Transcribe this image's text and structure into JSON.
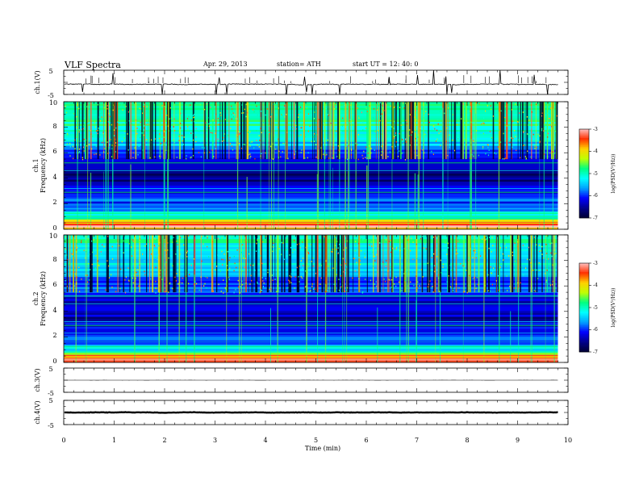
{
  "header": {
    "title": "VLF  Spectra",
    "date": "Apr. 29, 2013",
    "station": "station= ATH",
    "start": "start  UT  =    12: 40: 0"
  },
  "chart_data": [
    {
      "type": "line",
      "name_label": "ch.1(V)",
      "ylim": [
        -5,
        5
      ],
      "yticks": [
        "5",
        "-5"
      ],
      "xlim": [
        0,
        10
      ],
      "level": -0.8,
      "noise": 0.25,
      "spikes": 0.6
    },
    {
      "type": "heatmap",
      "channel_label": "ch.1",
      "ylabel": "Frequency  (kHz)",
      "ylim": [
        0,
        10
      ],
      "yticks": [
        "0",
        "2",
        "4",
        "6",
        "8",
        "10"
      ],
      "xlim": [
        0,
        10
      ],
      "data_end_min": 9.8,
      "band_profile": {
        "freq_khz": [
          0,
          0.3,
          0.6,
          1.0,
          1.5,
          2.0,
          3.0,
          4.0,
          5.0,
          5.5,
          6.0,
          7.0,
          8.0,
          9.0,
          10.0
        ],
        "log_psd": [
          -3.6,
          -3.2,
          -3.9,
          -4.9,
          -5.6,
          -5.9,
          -6.2,
          -6.6,
          -6.5,
          -6.1,
          -5.8,
          -5.3,
          -5.0,
          -4.8,
          -4.6
        ]
      },
      "colorbar": {
        "label": "log(PSD(V²/Hz))",
        "ticks": [
          "-3",
          "-4",
          "-5",
          "-6",
          "-7"
        ],
        "range": [
          -7,
          -3
        ]
      }
    },
    {
      "type": "heatmap",
      "channel_label": "ch.2",
      "ylabel": "Frequency  (kHz)",
      "ylim": [
        0,
        10
      ],
      "yticks": [
        "0",
        "2",
        "4",
        "6",
        "8",
        "10"
      ],
      "xlim": [
        0,
        10
      ],
      "data_end_min": 9.8,
      "band_profile": {
        "freq_khz": [
          0,
          0.3,
          0.6,
          1.0,
          1.5,
          2.0,
          3.0,
          4.0,
          5.0,
          5.5,
          6.0,
          7.0,
          8.0,
          9.0,
          10.0
        ],
        "log_psd": [
          -3.8,
          -3.4,
          -4.2,
          -5.2,
          -5.8,
          -6.1,
          -6.3,
          -6.5,
          -6.3,
          -6.0,
          -5.9,
          -5.6,
          -5.3,
          -5.1,
          -5.0
        ]
      },
      "colorbar": {
        "label": "log(PSD(V²/Hz))",
        "ticks": [
          "-3",
          "-4",
          "-5",
          "-6",
          "-7"
        ],
        "range": [
          -7,
          -3
        ]
      }
    },
    {
      "type": "line",
      "name_label": "ch.3(V)",
      "ylim": [
        -5,
        5
      ],
      "yticks": [
        "5",
        "-5"
      ],
      "xlim": [
        0,
        10
      ],
      "level": 0.0,
      "noise": 0.03,
      "spikes": 0.0
    },
    {
      "type": "line",
      "name_label": "ch.4(V)",
      "ylim": [
        -5,
        5
      ],
      "yticks": [
        "5",
        "-5"
      ],
      "xlim": [
        0,
        10
      ],
      "level": 0.0,
      "noise": 0.12,
      "spikes": 0.0
    }
  ],
  "xaxis": {
    "label": "Time  (min)",
    "ticks": [
      "0",
      "1",
      "2",
      "3",
      "4",
      "5",
      "6",
      "7",
      "8",
      "9",
      "10"
    ]
  },
  "colors": {
    "frame": "#000000",
    "trace": "#000000",
    "colormap": [
      "#000033",
      "#00008b",
      "#0000ff",
      "#00a0ff",
      "#00ffff",
      "#00ff80",
      "#c0ff00",
      "#ffd000",
      "#ff3000",
      "#ffc0c0"
    ]
  }
}
